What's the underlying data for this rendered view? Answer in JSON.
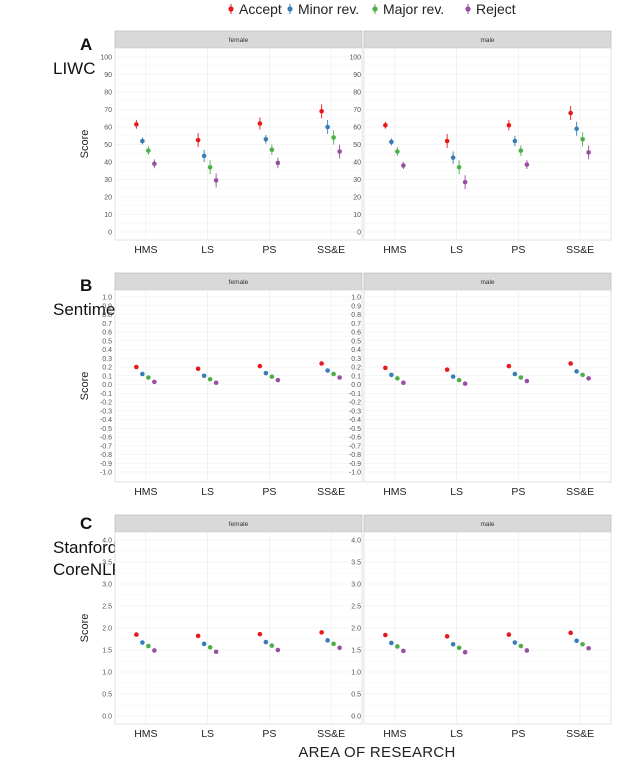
{
  "legend": {
    "items": [
      {
        "label": "Accept",
        "color": "#e41a1c"
      },
      {
        "label": "Minor rev.",
        "color": "#377eb8"
      },
      {
        "label": "Major rev.",
        "color": "#4daf4a"
      },
      {
        "label": "Reject",
        "color": "#984ea3"
      }
    ]
  },
  "x_axis_title": "AREA OF RESEARCH",
  "chart_data": [
    {
      "type": "scatter",
      "panel_letter": "A",
      "panel_name": [
        "LIWC"
      ],
      "ylabel": "Score",
      "ylim": [
        0,
        100
      ],
      "yticks": [
        "0",
        "10",
        "20",
        "30",
        "40",
        "50",
        "60",
        "70",
        "80",
        "90",
        "100"
      ],
      "categories": [
        "HMS",
        "LS",
        "PS",
        "SS&E"
      ],
      "facets": [
        {
          "label": "female",
          "series": [
            {
              "name": "Accept",
              "values": [
                61.5,
                52.5,
                62,
                69
              ],
              "err": [
                2.5,
                4,
                3.5,
                4
              ]
            },
            {
              "name": "Minor rev.",
              "values": [
                52,
                43.5,
                53,
                60
              ],
              "err": [
                2,
                3.5,
                2.5,
                4
              ]
            },
            {
              "name": "Major rev.",
              "values": [
                46.5,
                37,
                47,
                54
              ],
              "err": [
                2.5,
                4,
                3,
                4
              ]
            },
            {
              "name": "Reject",
              "values": [
                39,
                29.5,
                39.5,
                46
              ],
              "err": [
                2.5,
                4,
                3,
                4
              ]
            }
          ]
        },
        {
          "label": "male",
          "series": [
            {
              "name": "Accept",
              "values": [
                61,
                52,
                61,
                68
              ],
              "err": [
                2,
                4,
                3,
                4
              ]
            },
            {
              "name": "Minor rev.",
              "values": [
                51.5,
                42.5,
                52,
                59
              ],
              "err": [
                2,
                3.5,
                3,
                4
              ]
            },
            {
              "name": "Major rev.",
              "values": [
                46,
                37,
                46.5,
                53
              ],
              "err": [
                2.5,
                4,
                3,
                4
              ]
            },
            {
              "name": "Reject",
              "values": [
                38,
                28.5,
                38.5,
                45.5
              ],
              "err": [
                2,
                4,
                2.5,
                4
              ]
            }
          ]
        }
      ]
    },
    {
      "type": "scatter",
      "panel_letter": "B",
      "panel_name": [
        "SentimentR"
      ],
      "ylabel": "Score",
      "ylim": [
        -1.0,
        1.0
      ],
      "yticks": [
        "-1.0",
        "-0.9",
        "-0.8",
        "-0.7",
        "-0.6",
        "-0.5",
        "-0.4",
        "-0.3",
        "-0.2",
        "-0.1",
        "0.0",
        "0.1",
        "0.2",
        "0.3",
        "0.4",
        "0.5",
        "0.6",
        "0.7",
        "0.8",
        "0.9",
        "1.0"
      ],
      "categories": [
        "HMS",
        "LS",
        "PS",
        "SS&E"
      ],
      "facets": [
        {
          "label": "female",
          "series": [
            {
              "name": "Accept",
              "values": [
                0.2,
                0.18,
                0.21,
                0.24
              ],
              "err": [
                0,
                0,
                0,
                0
              ]
            },
            {
              "name": "Minor rev.",
              "values": [
                0.12,
                0.1,
                0.13,
                0.16
              ],
              "err": [
                0,
                0,
                0,
                0
              ]
            },
            {
              "name": "Major rev.",
              "values": [
                0.08,
                0.06,
                0.09,
                0.12
              ],
              "err": [
                0,
                0,
                0,
                0
              ]
            },
            {
              "name": "Reject",
              "values": [
                0.03,
                0.02,
                0.05,
                0.08
              ],
              "err": [
                0,
                0,
                0,
                0
              ]
            }
          ]
        },
        {
          "label": "male",
          "series": [
            {
              "name": "Accept",
              "values": [
                0.19,
                0.17,
                0.21,
                0.24
              ],
              "err": [
                0,
                0,
                0,
                0
              ]
            },
            {
              "name": "Minor rev.",
              "values": [
                0.11,
                0.09,
                0.12,
                0.15
              ],
              "err": [
                0,
                0,
                0,
                0
              ]
            },
            {
              "name": "Major rev.",
              "values": [
                0.07,
                0.05,
                0.08,
                0.11
              ],
              "err": [
                0,
                0,
                0,
                0
              ]
            },
            {
              "name": "Reject",
              "values": [
                0.02,
                0.01,
                0.04,
                0.07
              ],
              "err": [
                0,
                0,
                0,
                0
              ]
            }
          ]
        }
      ]
    },
    {
      "type": "scatter",
      "panel_letter": "C",
      "panel_name": [
        "Stanford",
        "CoreNLP"
      ],
      "ylabel": "Score",
      "ylim": [
        0,
        4.0
      ],
      "yticks": [
        "0.0",
        "0.5",
        "1.0",
        "1.5",
        "2.0",
        "2.5",
        "3.0",
        "3.5",
        "4.0"
      ],
      "categories": [
        "HMS",
        "LS",
        "PS",
        "SS&E"
      ],
      "facets": [
        {
          "label": "female",
          "series": [
            {
              "name": "Accept",
              "values": [
                1.85,
                1.82,
                1.86,
                1.9
              ],
              "err": [
                0,
                0,
                0,
                0
              ]
            },
            {
              "name": "Minor rev.",
              "values": [
                1.67,
                1.64,
                1.68,
                1.72
              ],
              "err": [
                0,
                0,
                0,
                0
              ]
            },
            {
              "name": "Major rev.",
              "values": [
                1.59,
                1.56,
                1.6,
                1.64
              ],
              "err": [
                0,
                0,
                0,
                0
              ]
            },
            {
              "name": "Reject",
              "values": [
                1.49,
                1.46,
                1.5,
                1.55
              ],
              "err": [
                0,
                0,
                0,
                0
              ]
            }
          ]
        },
        {
          "label": "male",
          "series": [
            {
              "name": "Accept",
              "values": [
                1.84,
                1.81,
                1.85,
                1.89
              ],
              "err": [
                0,
                0,
                0,
                0
              ]
            },
            {
              "name": "Minor rev.",
              "values": [
                1.66,
                1.63,
                1.67,
                1.71
              ],
              "err": [
                0,
                0,
                0,
                0
              ]
            },
            {
              "name": "Major rev.",
              "values": [
                1.58,
                1.55,
                1.59,
                1.63
              ],
              "err": [
                0,
                0,
                0,
                0
              ]
            },
            {
              "name": "Reject",
              "values": [
                1.48,
                1.45,
                1.49,
                1.54
              ],
              "err": [
                0,
                0,
                0,
                0
              ]
            }
          ]
        }
      ]
    }
  ]
}
